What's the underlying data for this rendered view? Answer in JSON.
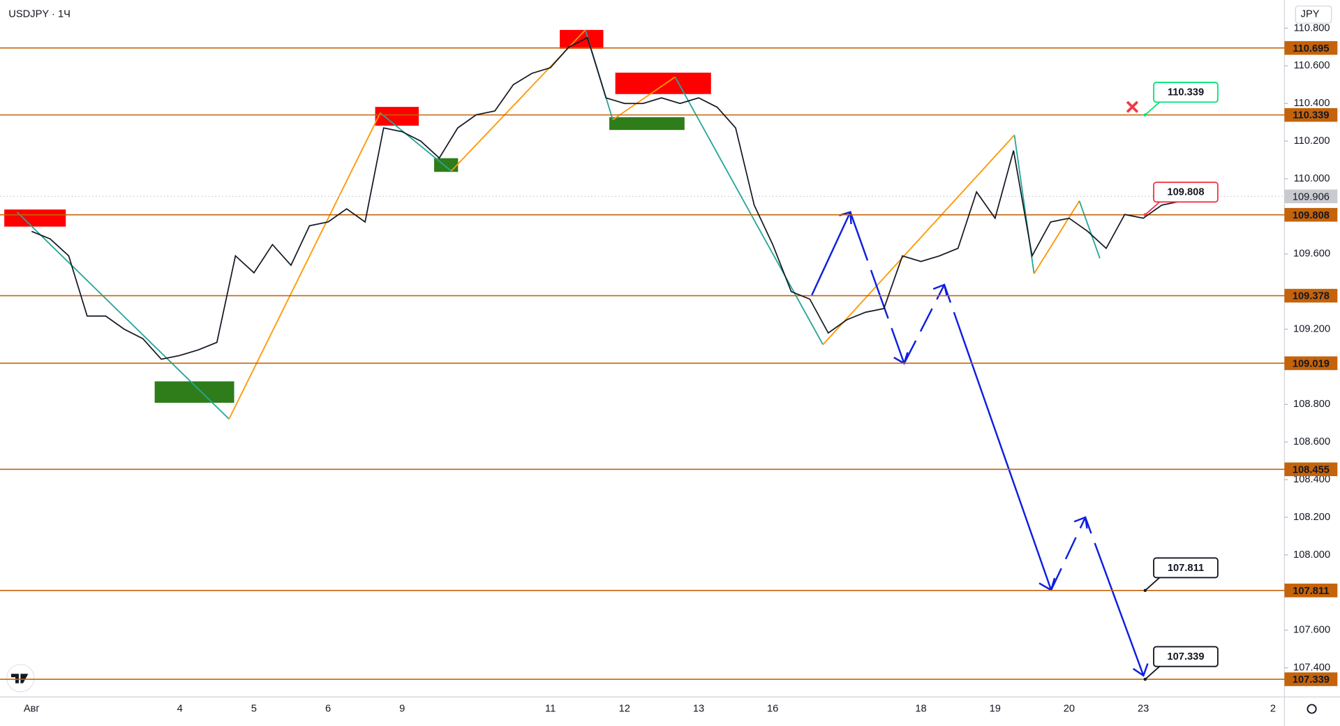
{
  "chart_data": {
    "type": "line",
    "title": "USDJPY · 1Ч",
    "currency": "JPY",
    "categories": [
      "Авг",
      null,
      null,
      null,
      null,
      null,
      null,
      null,
      "4",
      null,
      null,
      null,
      "5",
      null,
      null,
      null,
      "6",
      null,
      null,
      null,
      "9",
      null,
      null,
      null,
      null,
      null,
      null,
      null,
      "11",
      null,
      null,
      null,
      "12",
      null,
      null,
      null,
      "13",
      null,
      null,
      null,
      "16",
      null,
      null,
      null,
      null,
      null,
      null,
      null,
      "18",
      null,
      null,
      null,
      "19",
      null,
      null,
      null,
      "20",
      null,
      null,
      null,
      "23",
      null,
      null,
      null,
      null,
      null,
      null,
      "2"
    ],
    "series": [
      {
        "color": "#131722",
        "values": [
          109.72,
          109.68,
          109.59,
          109.27,
          109.27,
          109.2,
          109.15,
          109.04,
          109.06,
          109.09,
          109.13,
          109.59,
          109.5,
          109.65,
          109.54,
          109.75,
          109.77,
          109.84,
          109.77,
          110.27,
          110.25,
          110.2,
          110.11,
          110.27,
          110.34,
          110.36,
          110.5,
          110.56,
          110.59,
          110.7,
          110.75,
          110.43,
          110.4,
          110.4,
          110.43,
          110.4,
          110.43,
          110.38,
          110.27,
          109.86,
          109.65,
          109.4,
          109.36,
          109.18,
          109.25,
          109.29,
          109.31,
          109.59,
          109.56,
          109.59,
          109.63,
          109.93,
          109.79,
          110.15,
          109.59,
          109.77,
          109.79,
          109.72,
          109.63,
          109.81,
          109.79,
          109.86,
          109.88,
          null,
          null,
          null,
          null,
          null
        ]
      }
    ],
    "ylim": [
      107.245,
      110.95
    ],
    "yticks": [
      {
        "value": 110.8,
        "label": "110.800"
      },
      {
        "value": 110.6,
        "label": "110.600"
      },
      {
        "value": 110.4,
        "label": "110.400"
      },
      {
        "value": 110.2,
        "label": "110.200"
      },
      {
        "value": 110.0,
        "label": "110.000"
      },
      {
        "value": 109.6,
        "label": "109.600"
      },
      {
        "value": 109.2,
        "label": "109.200"
      },
      {
        "value": 108.8,
        "label": "108.800"
      },
      {
        "value": 108.6,
        "label": "108.600"
      },
      {
        "value": 108.4,
        "label": "108.400"
      },
      {
        "value": 108.2,
        "label": "108.200"
      },
      {
        "value": 108.0,
        "label": "108.000"
      },
      {
        "value": 107.6,
        "label": "107.600"
      },
      {
        "value": 107.4,
        "label": "107.400"
      }
    ],
    "levels": [
      110.695,
      110.339,
      109.808,
      109.378,
      109.019,
      108.455,
      107.811,
      107.339
    ],
    "level_color": "#c4630b",
    "last_price": 109.906,
    "annotations": [
      {
        "value": 110.339,
        "color": "#00e676"
      },
      {
        "value": 109.808,
        "color": "#f23645"
      },
      {
        "value": 107.811,
        "color": "#131722"
      },
      {
        "value": 107.339,
        "color": "#131722"
      }
    ]
  }
}
